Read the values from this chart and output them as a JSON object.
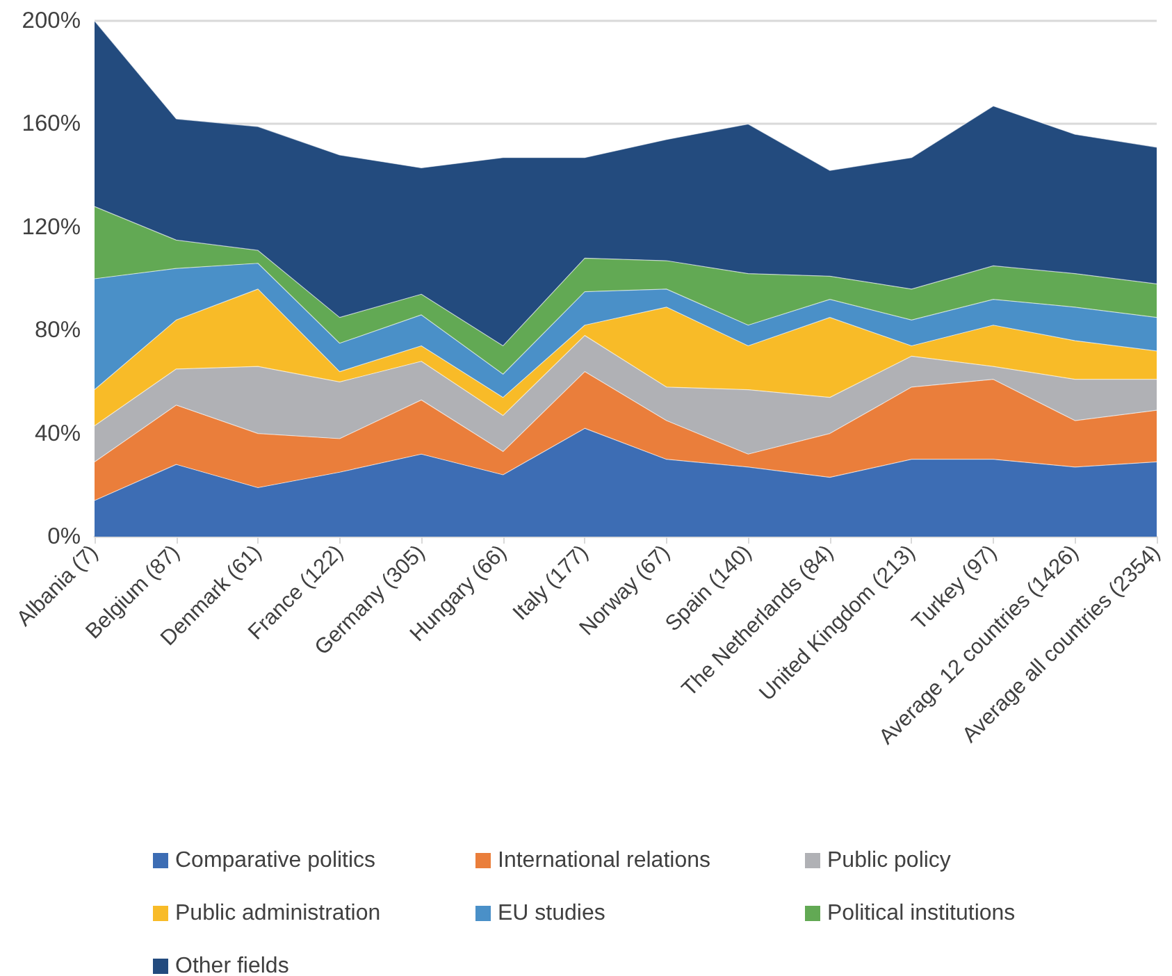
{
  "chart_data": {
    "type": "area",
    "stacked": true,
    "categories": [
      "Albania (7)",
      "Belgium (87)",
      "Denmark (61)",
      "France (122)",
      "Germany (305)",
      "Hungary (66)",
      "Italy (177)",
      "Norway (67)",
      "Spain (140)",
      "The Netherlands (84)",
      "United Kingdom (213)",
      "Turkey (97)",
      "Average 12 countries (1426)",
      "Average all countries (2354)"
    ],
    "series": [
      {
        "name": "Comparative politics",
        "color": "#3d6db4",
        "values": [
          14,
          28,
          19,
          25,
          32,
          24,
          42,
          30,
          27,
          23,
          30,
          30,
          27,
          29
        ]
      },
      {
        "name": "International relations",
        "color": "#ea7e3b",
        "values": [
          15,
          23,
          21,
          13,
          21,
          9,
          22,
          15,
          5,
          17,
          28,
          31,
          18,
          20
        ]
      },
      {
        "name": "Public policy",
        "color": "#b0b1b5",
        "values": [
          14,
          14,
          26,
          22,
          15,
          14,
          14,
          13,
          25,
          14,
          12,
          5,
          16,
          12
        ]
      },
      {
        "name": "Public administration",
        "color": "#f8bb28",
        "values": [
          14,
          19,
          30,
          4,
          6,
          7,
          4,
          31,
          17,
          31,
          4,
          16,
          15,
          11
        ]
      },
      {
        "name": "EU studies",
        "color": "#4a90c8",
        "values": [
          43,
          20,
          10,
          11,
          12,
          9,
          13,
          7,
          8,
          7,
          10,
          10,
          13,
          13
        ]
      },
      {
        "name": "Political institutions",
        "color": "#62a954",
        "values": [
          28,
          11,
          5,
          10,
          8,
          11,
          13,
          11,
          20,
          9,
          12,
          13,
          13,
          13
        ]
      },
      {
        "name": "Other fields",
        "color": "#234b7e",
        "values": [
          72,
          47,
          48,
          63,
          49,
          73,
          39,
          47,
          58,
          41,
          51,
          62,
          54,
          53
        ]
      }
    ],
    "ylim": [
      0,
      200
    ],
    "yticks": [
      {
        "value": 0,
        "label": "0%"
      },
      {
        "value": 40,
        "label": "40%"
      },
      {
        "value": 80,
        "label": "80%"
      },
      {
        "value": 120,
        "label": "120%"
      },
      {
        "value": 160,
        "label": "160%"
      },
      {
        "value": 200,
        "label": "200%"
      }
    ],
    "grid": "y",
    "legend": "bottom"
  }
}
